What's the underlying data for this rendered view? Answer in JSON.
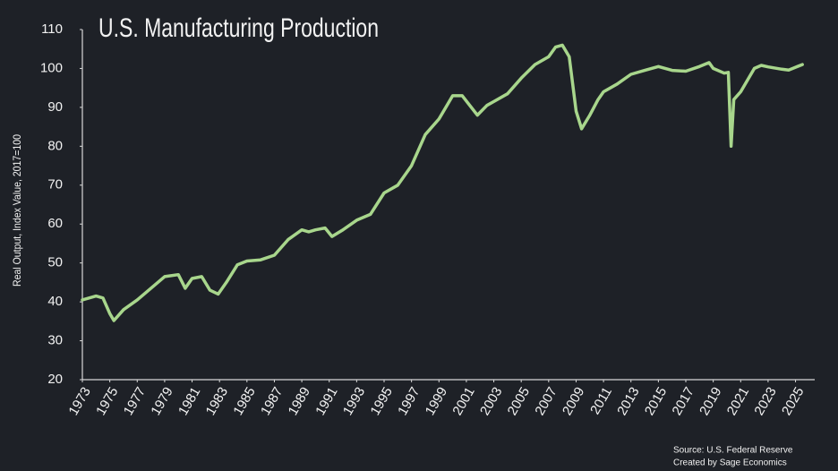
{
  "chart_data": {
    "type": "line",
    "title": "U.S. Manufacturing Production",
    "y_label": "Real Output, Index Value, 2017=100",
    "source": "Source: U.S. Federal Reserve",
    "credit": "Created by Sage Economics",
    "color": "#a8d68c",
    "x": [
      1973.0,
      1974.0,
      1974.5,
      1975.0,
      1975.3,
      1976.0,
      1977.0,
      1978.0,
      1979.0,
      1980.0,
      1980.5,
      1981.0,
      1981.7,
      1982.3,
      1982.9,
      1983.5,
      1984.3,
      1985.0,
      1986.0,
      1987.0,
      1988.0,
      1989.0,
      1989.5,
      1990.0,
      1990.7,
      1991.2,
      1992.0,
      1993.0,
      1994.0,
      1995.0,
      1996.0,
      1997.0,
      1998.0,
      1999.0,
      2000.0,
      2000.7,
      2001.8,
      2002.5,
      2003.0,
      2004.0,
      2005.0,
      2006.0,
      2007.0,
      2007.5,
      2008.0,
      2008.5,
      2009.0,
      2009.4,
      2010.0,
      2010.6,
      2011.0,
      2012.0,
      2013.0,
      2014.0,
      2015.0,
      2016.0,
      2017.0,
      2018.0,
      2018.7,
      2019.0,
      2019.8,
      2020.1,
      2020.3,
      2020.5,
      2021.0,
      2021.5,
      2022.0,
      2022.5,
      2023.0,
      2024.0,
      2024.5,
      2025.0,
      2025.5
    ],
    "values": [
      40.5,
      41.5,
      41,
      37,
      35.2,
      38,
      40.5,
      43.5,
      46.5,
      47,
      43.5,
      46,
      46.5,
      43,
      42,
      45,
      49.5,
      50.5,
      50.8,
      52,
      56,
      58.5,
      58,
      58.5,
      59,
      56.8,
      58.5,
      61,
      62.5,
      68,
      70,
      75,
      83,
      87,
      93,
      93,
      88,
      90.5,
      91.5,
      93.5,
      97.5,
      101,
      103,
      105.5,
      106,
      103,
      89,
      84.5,
      88,
      92,
      94,
      96,
      98.5,
      99.5,
      100.5,
      99.5,
      99.3,
      100.5,
      101.5,
      100,
      98.8,
      99,
      80,
      92,
      94,
      97,
      100,
      100.8,
      100.4,
      99.8,
      99.6,
      100.3,
      101
    ],
    "xlim": [
      1973,
      2026.4
    ],
    "xticks": [
      1973,
      1975,
      1977,
      1979,
      1981,
      1983,
      1985,
      1987,
      1989,
      1991,
      1993,
      1995,
      1997,
      1999,
      2001,
      2003,
      2005,
      2007,
      2009,
      2011,
      2013,
      2015,
      2017,
      2019,
      2021,
      2023,
      2025
    ],
    "ylim": [
      20,
      110
    ],
    "yticks": [
      20,
      30,
      40,
      50,
      60,
      70,
      80,
      90,
      100,
      110
    ]
  }
}
